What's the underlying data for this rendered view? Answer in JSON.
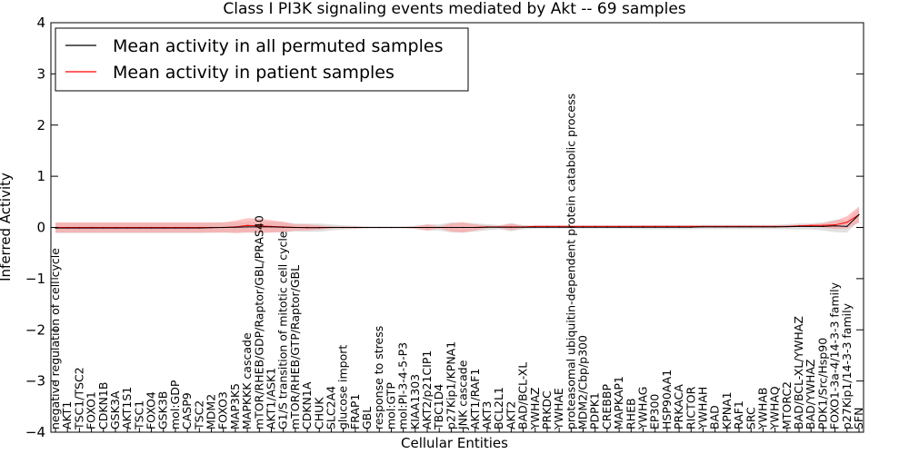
{
  "chart_data": {
    "type": "line",
    "title": "Class I PI3K signaling events mediated by Akt -- 69 samples",
    "xlabel": "Cellular Entities",
    "ylabel": "Inferred Activity",
    "ylim": [
      -4,
      4
    ],
    "yticks": [
      "4",
      "3",
      "2",
      "1",
      "0",
      "−1",
      "−2",
      "−3",
      "−4"
    ],
    "legend": {
      "placement": "top-left",
      "entries": [
        "Mean activity in all permuted samples",
        "Mean activity in patient samples"
      ]
    },
    "colors": {
      "permuted": "#000000",
      "patient": "#ff0000",
      "patient_band": "#ff9999",
      "permuted_band": "#cccccc"
    },
    "categories": [
      "negative regulation of cell cycle",
      "AKT1",
      "TSC1/TSC2",
      "FOXO1",
      "CDKN1B",
      "GSK3A",
      "AKT1S1",
      "TSC1",
      "FOXO4",
      "GSK3B",
      "mol:GDP",
      "CASP9",
      "TSC2",
      "MDM2",
      "FOXO3",
      "MAP3K5",
      "MAPKKK cascade",
      "mTOR/RHEB/GDP/Raptor/GBL/PRAS40",
      "AKT1/ASK1",
      "G1/S transition of mitotic cell cycle",
      "mTOR/RHEB/GTP/Raptor/GBL",
      "CDKN1A",
      "CHUK",
      "SLC2A4",
      "glucose import",
      "FRAP1",
      "GBL",
      "response to stress",
      "mol:GTP",
      "mol:PI-3-4-5-P3",
      "KIAA1303",
      "AKT2/p21CIP1",
      "TBC1D4",
      "p27Kip1/KPNA1",
      "JNK cascade",
      "AKT1/RAF1",
      "AKT3",
      "BCL2L1",
      "AKT2",
      "BAD/BCL-XL",
      "YWHAZ",
      "PRKDC",
      "YWHAE",
      "proteasomal ubiquitin-dependent protein catabolic process",
      "MDM2/Cbp/p300",
      "PDPK1",
      "CREBBP",
      "MAPKAP1",
      "RHEB",
      "YWHAG",
      "EP300",
      "HSP90AA1",
      "PRKACA",
      "RICTOR",
      "YWHAH",
      "BAD",
      "KPNA1",
      "RAF1",
      "SRC",
      "YWHAB",
      "YWHAQ",
      "MTORC2",
      "BAD/BCL-XL/YWHAZ",
      "BAD/YWHAZ",
      "PDK1/Src/Hsp90",
      "FOXO1-3a-4/14-3-3 family",
      "p27Kip1/14-3-3 family",
      "SFN"
    ],
    "series": [
      {
        "name": "Mean activity in all permuted samples",
        "values": [
          -0.01,
          -0.01,
          -0.01,
          -0.01,
          -0.01,
          -0.01,
          -0.01,
          -0.01,
          -0.01,
          -0.01,
          -0.01,
          -0.01,
          -0.01,
          -0.005,
          0,
          0.005,
          0.01,
          0.01,
          0.01,
          0.005,
          0,
          -0.005,
          -0.005,
          0,
          0,
          0,
          0,
          0,
          0,
          0,
          0,
          0,
          0,
          0,
          0,
          0,
          0.005,
          0.005,
          0.005,
          0.005,
          0.005,
          0.005,
          0.005,
          0.005,
          0.005,
          0.005,
          0.005,
          0.005,
          0.005,
          0.005,
          0.005,
          0.005,
          0.005,
          0.005,
          0.01,
          0.01,
          0.01,
          0.01,
          0.01,
          0.01,
          0.01,
          0.015,
          0.02,
          0.02,
          0.02,
          0.03,
          0.02,
          0.25
        ],
        "std": [
          0.1,
          0.1,
          0.1,
          0.1,
          0.1,
          0.1,
          0.1,
          0.1,
          0.1,
          0.1,
          0.1,
          0.1,
          0.1,
          0.1,
          0.1,
          0.1,
          0.1,
          0.1,
          0.1,
          0.1,
          0.08,
          0.08,
          0.08,
          0.06,
          0.04,
          0.03,
          0.02,
          0.02,
          0.02,
          0.02,
          0.03,
          0.06,
          0.06,
          0.1,
          0.1,
          0.08,
          0.06,
          0.04,
          0.08,
          0.04,
          0.03,
          0.03,
          0.03,
          0.03,
          0.03,
          0.03,
          0.03,
          0.03,
          0.03,
          0.04,
          0.04,
          0.04,
          0.04,
          0.04,
          0.04,
          0.04,
          0.04,
          0.04,
          0.04,
          0.04,
          0.04,
          0.05,
          0.06,
          0.06,
          0.08,
          0.12,
          0.12,
          0.12
        ]
      },
      {
        "name": "Mean activity in patient samples",
        "values": [
          0,
          0,
          0,
          0,
          0,
          0,
          0,
          0,
          0,
          0,
          0,
          0,
          0,
          0,
          0,
          0.01,
          0.04,
          0.03,
          0.02,
          0.01,
          0,
          0,
          0,
          0,
          0,
          0,
          0,
          0,
          0,
          0,
          0,
          0,
          0,
          0,
          0,
          0,
          0.01,
          0.01,
          0.01,
          0.01,
          0.02,
          0.02,
          0.02,
          0.02,
          0.02,
          0.02,
          0.02,
          0.02,
          0.02,
          0.02,
          0.02,
          0.02,
          0.02,
          0.02,
          0.02,
          0.02,
          0.02,
          0.02,
          0.02,
          0.02,
          0.02,
          0.02,
          0.03,
          0.04,
          0.04,
          0.05,
          0.1,
          0.25
        ],
        "std": [
          0.1,
          0.1,
          0.1,
          0.1,
          0.1,
          0.1,
          0.1,
          0.1,
          0.1,
          0.1,
          0.1,
          0.1,
          0.1,
          0.1,
          0.1,
          0.12,
          0.14,
          0.14,
          0.12,
          0.1,
          0.06,
          0.06,
          0.04,
          0.02,
          0.02,
          0.02,
          0.01,
          0.01,
          0.01,
          0.01,
          0.02,
          0.06,
          0.02,
          0.08,
          0.1,
          0.06,
          0.02,
          0.02,
          0.06,
          0.02,
          0.02,
          0.02,
          0.02,
          0.02,
          0.02,
          0.02,
          0.02,
          0.02,
          0.02,
          0.02,
          0.02,
          0.02,
          0.02,
          0.02,
          0.02,
          0.02,
          0.02,
          0.02,
          0.02,
          0.02,
          0.02,
          0.02,
          0.02,
          0.02,
          0.04,
          0.08,
          0.12,
          0.16
        ]
      }
    ]
  }
}
